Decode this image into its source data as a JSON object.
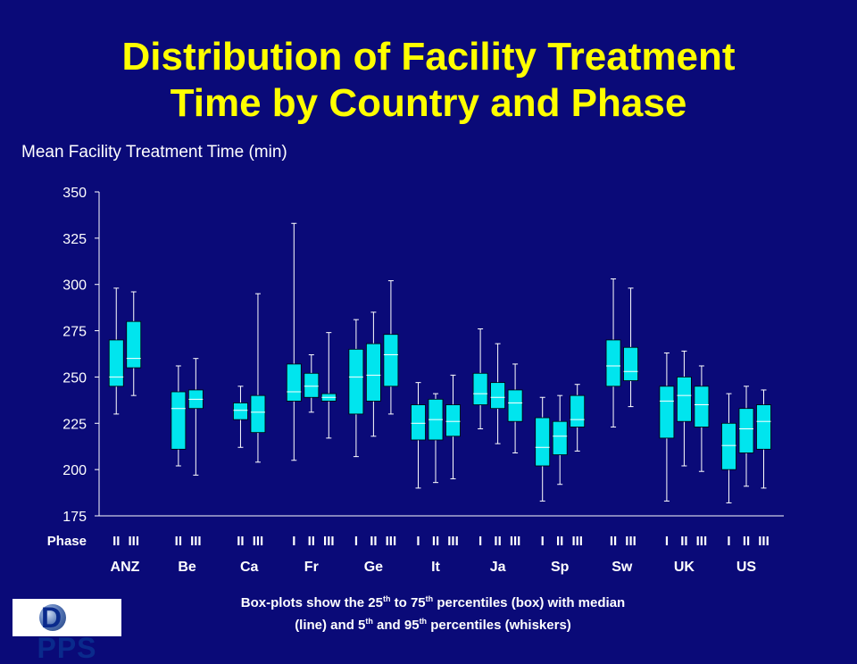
{
  "title_line1": "Distribution of Facility Treatment",
  "title_line2": "Time by Country and Phase",
  "caption": {
    "line1_pre": "Box-plots show the 25",
    "line1_sup1": "th",
    "line1_mid": " to 75",
    "line1_sup2": "th",
    "line1_post": " percentiles (box) with median",
    "line2_pre": "(line) and 5",
    "line2_sup1": "th",
    "line2_mid": " and 95",
    "line2_sup2": "th",
    "line2_post": " percentiles (whiskers)"
  },
  "logo": {
    "text_left": "D",
    "text_right": "PPS"
  },
  "colors": {
    "background": "#0a0a78",
    "title": "#ffff00",
    "box": "#00e5ee",
    "text": "#ffffff"
  },
  "chart_data": {
    "type": "boxplot",
    "ylabel": "Mean Facility Treatment Time (min)",
    "ylim": [
      175,
      350
    ],
    "yticks": [
      175,
      200,
      225,
      250,
      275,
      300,
      325,
      350
    ],
    "phase_label": "Phase",
    "groups": [
      {
        "name": "ANZ",
        "boxes": [
          {
            "phase": "II",
            "p5": 230,
            "p25": 245,
            "median": 250,
            "p75": 270,
            "p95": 298
          },
          {
            "phase": "III",
            "p5": 240,
            "p25": 255,
            "median": 260,
            "p75": 280,
            "p95": 296
          }
        ]
      },
      {
        "name": "Be",
        "boxes": [
          {
            "phase": "II",
            "p5": 202,
            "p25": 211,
            "median": 233,
            "p75": 242,
            "p95": 256
          },
          {
            "phase": "III",
            "p5": 197,
            "p25": 233,
            "median": 238,
            "p75": 243,
            "p95": 260
          }
        ]
      },
      {
        "name": "Ca",
        "boxes": [
          {
            "phase": "II",
            "p5": 212,
            "p25": 227,
            "median": 232,
            "p75": 236,
            "p95": 245
          },
          {
            "phase": "III",
            "p5": 204,
            "p25": 220,
            "median": 231,
            "p75": 240,
            "p95": 295
          }
        ]
      },
      {
        "name": "Fr",
        "boxes": [
          {
            "phase": "I",
            "p5": 205,
            "p25": 237,
            "median": 242,
            "p75": 257,
            "p95": 333
          },
          {
            "phase": "II",
            "p5": 231,
            "p25": 239,
            "median": 245,
            "p75": 252,
            "p95": 262
          },
          {
            "phase": "III",
            "p5": 217,
            "p25": 237,
            "median": 239,
            "p75": 241,
            "p95": 274
          }
        ]
      },
      {
        "name": "Ge",
        "boxes": [
          {
            "phase": "I",
            "p5": 207,
            "p25": 230,
            "median": 250,
            "p75": 265,
            "p95": 281
          },
          {
            "phase": "II",
            "p5": 218,
            "p25": 237,
            "median": 251,
            "p75": 268,
            "p95": 285
          },
          {
            "phase": "III",
            "p5": 230,
            "p25": 245,
            "median": 262,
            "p75": 273,
            "p95": 302
          }
        ]
      },
      {
        "name": "It",
        "boxes": [
          {
            "phase": "I",
            "p5": 190,
            "p25": 216,
            "median": 225,
            "p75": 235,
            "p95": 247
          },
          {
            "phase": "II",
            "p5": 193,
            "p25": 216,
            "median": 227,
            "p75": 238,
            "p95": 241
          },
          {
            "phase": "III",
            "p5": 195,
            "p25": 218,
            "median": 226,
            "p75": 235,
            "p95": 251
          }
        ]
      },
      {
        "name": "Ja",
        "boxes": [
          {
            "phase": "I",
            "p5": 222,
            "p25": 235,
            "median": 241,
            "p75": 252,
            "p95": 276
          },
          {
            "phase": "II",
            "p5": 214,
            "p25": 233,
            "median": 239,
            "p75": 247,
            "p95": 268
          },
          {
            "phase": "III",
            "p5": 209,
            "p25": 226,
            "median": 236,
            "p75": 243,
            "p95": 257
          }
        ]
      },
      {
        "name": "Sp",
        "boxes": [
          {
            "phase": "I",
            "p5": 183,
            "p25": 202,
            "median": 212,
            "p75": 228,
            "p95": 239
          },
          {
            "phase": "II",
            "p5": 192,
            "p25": 208,
            "median": 218,
            "p75": 226,
            "p95": 240
          },
          {
            "phase": "III",
            "p5": 210,
            "p25": 223,
            "median": 227,
            "p75": 240,
            "p95": 246
          }
        ]
      },
      {
        "name": "Sw",
        "boxes": [
          {
            "phase": "II",
            "p5": 223,
            "p25": 245,
            "median": 256,
            "p75": 270,
            "p95": 303
          },
          {
            "phase": "III",
            "p5": 234,
            "p25": 248,
            "median": 253,
            "p75": 266,
            "p95": 298
          }
        ]
      },
      {
        "name": "UK",
        "boxes": [
          {
            "phase": "I",
            "p5": 183,
            "p25": 217,
            "median": 237,
            "p75": 245,
            "p95": 263
          },
          {
            "phase": "II",
            "p5": 202,
            "p25": 226,
            "median": 240,
            "p75": 250,
            "p95": 264
          },
          {
            "phase": "III",
            "p5": 199,
            "p25": 223,
            "median": 235,
            "p75": 245,
            "p95": 256
          }
        ]
      },
      {
        "name": "US",
        "boxes": [
          {
            "phase": "I",
            "p5": 182,
            "p25": 200,
            "median": 213,
            "p75": 225,
            "p95": 241
          },
          {
            "phase": "II",
            "p5": 191,
            "p25": 209,
            "median": 222,
            "p75": 233,
            "p95": 245
          },
          {
            "phase": "III",
            "p5": 190,
            "p25": 211,
            "median": 226,
            "p75": 235,
            "p95": 243
          }
        ]
      }
    ]
  }
}
